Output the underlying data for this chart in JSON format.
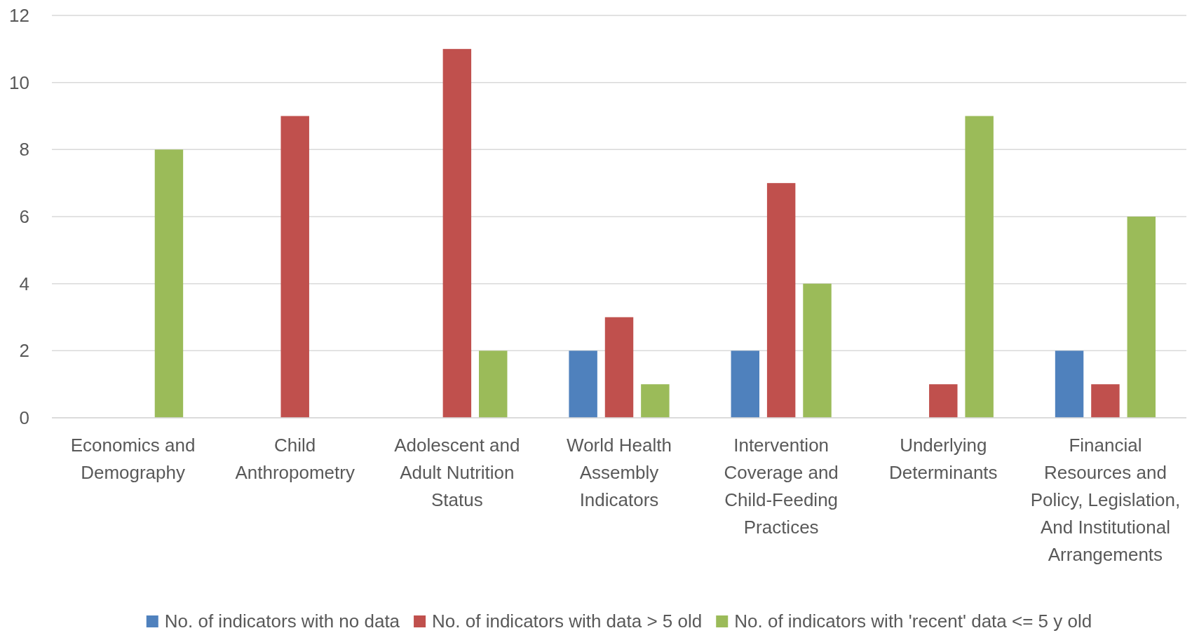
{
  "chart_data": {
    "type": "bar",
    "categories": [
      "Economics and Demography",
      "Child Anthropometry",
      "Adolescent and Adult Nutrition Status",
      "World Health Assembly Indicators",
      "Intervention Coverage and Child-Feeding Practices",
      "Underlying Determinants",
      "Financial Resources and Policy, Legislation, And Institutional Arrangements"
    ],
    "series": [
      {
        "name": "No. of indicators with no data",
        "color": "#4f81bd",
        "values": [
          0,
          0,
          0,
          2,
          2,
          0,
          2
        ]
      },
      {
        "name": "No. of indicators with data > 5 old",
        "color": "#c0504d",
        "values": [
          0,
          9,
          11,
          3,
          7,
          1,
          1
        ]
      },
      {
        "name": "No. of indicators with 'recent' data <= 5 y old",
        "color": "#9bbb59",
        "values": [
          8,
          0,
          2,
          1,
          4,
          9,
          6
        ]
      }
    ],
    "ylim": [
      0,
      12
    ],
    "yticks": [
      0,
      2,
      4,
      6,
      8,
      10,
      12
    ],
    "grid": "y",
    "legend": "bottom"
  }
}
